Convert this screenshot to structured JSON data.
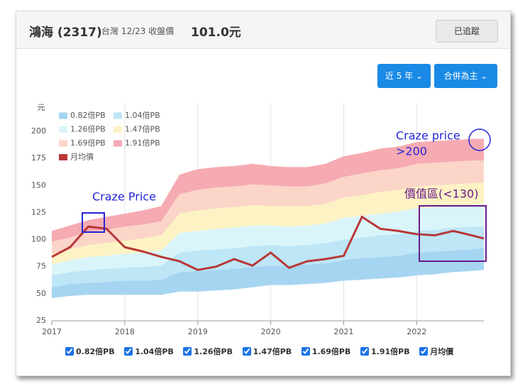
{
  "header": {
    "name": "鴻海 (2317)",
    "market": "台灣 12/23 收盤價",
    "price": "101.0元",
    "follow_button": "已追蹤"
  },
  "controls": {
    "period": "近 5 年",
    "basis": "合併為主"
  },
  "chart_data": {
    "type": "band",
    "y_label": "元",
    "legend": "top-left",
    "grid": "x",
    "xlim": [
      2017,
      2022.92
    ],
    "xticks": [
      2017,
      2018,
      2019,
      2020,
      2021,
      2022
    ],
    "ylim": [
      25,
      200
    ],
    "yticks": [
      25,
      50,
      75,
      100,
      125,
      150,
      175,
      200
    ],
    "x": [
      2017,
      2017.25,
      2017.5,
      2017.75,
      2018,
      2018.25,
      2018.5,
      2018.75,
      2019,
      2019.25,
      2019.5,
      2019.75,
      2020,
      2020.25,
      2020.5,
      2020.75,
      2021,
      2021.25,
      2021.5,
      2021.75,
      2022,
      2022.25,
      2022.5,
      2022.75,
      2022.92
    ],
    "series": [
      {
        "name": "0.82倍PB",
        "color": "#a6d5f2",
        "base": [
          46,
          48,
          49,
          49,
          49,
          49,
          49,
          52,
          52,
          53,
          54,
          56,
          58,
          58,
          59,
          60,
          62,
          63,
          64,
          65,
          67,
          68,
          70,
          71,
          72
        ],
        "values": [
          56,
          59,
          60,
          61,
          62,
          62,
          63,
          70,
          71,
          72,
          73,
          75,
          76,
          76,
          77,
          78,
          81,
          83,
          84,
          85,
          88,
          89,
          90,
          91,
          92
        ]
      },
      {
        "name": "1.04倍PB",
        "color": "#bde6f6",
        "values": [
          67,
          70,
          72,
          73,
          74,
          75,
          76,
          88,
          90,
          91,
          92,
          94,
          95,
          94,
          95,
          97,
          100,
          102,
          104,
          105,
          108,
          109,
          111,
          112,
          112
        ]
      },
      {
        "name": "1.26倍PB",
        "color": "#daf5f9",
        "values": [
          77,
          81,
          84,
          85,
          87,
          88,
          90,
          106,
          108,
          110,
          111,
          113,
          113,
          112,
          113,
          115,
          120,
          122,
          124,
          126,
          129,
          130,
          131,
          132,
          133
        ]
      },
      {
        "name": "1.47倍PB",
        "color": "#fdf2c4",
        "values": [
          87,
          91,
          95,
          97,
          99,
          101,
          104,
          124,
          127,
          129,
          130,
          132,
          131,
          131,
          131,
          133,
          139,
          141,
          144,
          146,
          149,
          150,
          151,
          152,
          153
        ]
      },
      {
        "name": "1.69倍PB",
        "color": "#fbd5c8",
        "values": [
          98,
          102,
          107,
          109,
          112,
          114,
          117,
          142,
          146,
          148,
          149,
          151,
          150,
          149,
          149,
          152,
          158,
          161,
          164,
          166,
          170,
          171,
          172,
          173,
          173
        ]
      },
      {
        "name": "1.91倍PB",
        "color": "#f6aab2",
        "values": [
          108,
          113,
          118,
          121,
          124,
          127,
          131,
          160,
          165,
          167,
          168,
          170,
          168,
          167,
          167,
          170,
          177,
          180,
          184,
          186,
          190,
          191,
          192,
          193,
          193
        ]
      },
      {
        "name": "月均價",
        "type": "line",
        "color": "#b83838",
        "values": [
          84,
          93,
          112,
          110,
          93,
          89,
          84,
          80,
          72,
          75,
          82,
          76,
          88,
          74,
          80,
          82,
          85,
          121,
          110,
          108,
          105,
          104,
          108,
          104,
          101
        ]
      }
    ],
    "annotations": [
      "Craze Price",
      "Craze price",
      ">200",
      "價值區(<130)"
    ]
  }
}
